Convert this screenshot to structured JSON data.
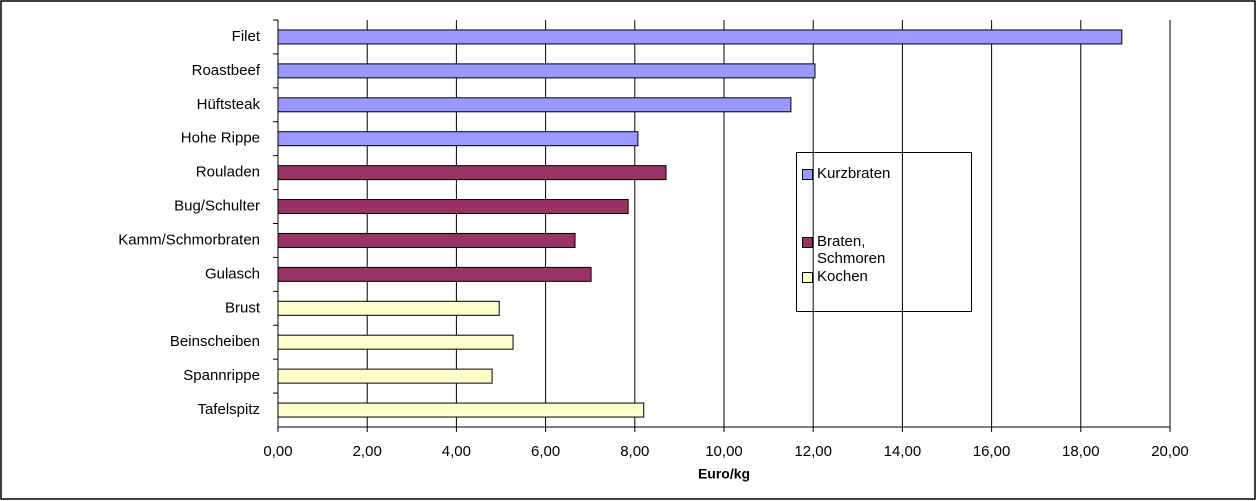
{
  "chart_data": {
    "type": "bar",
    "orientation": "horizontal",
    "x_label": "Euro/kg",
    "categories": [
      "Filet",
      "Roastbeef",
      "Hüftsteak",
      "Hohe Rippe",
      "Rouladen",
      "Bug/Schulter",
      "Kamm/Schmorbraten",
      "Gulasch",
      "Brust",
      "Beinscheiben",
      "Spannrippe",
      "Tafelspitz"
    ],
    "series": [
      {
        "name": "Kurzbraten",
        "color": "#9999ff",
        "values": [
          18.92,
          12.04,
          11.5,
          8.07,
          null,
          null,
          null,
          null,
          null,
          null,
          null,
          null
        ]
      },
      {
        "name": "Braten, Schmoren",
        "color": "#993366",
        "values": [
          null,
          null,
          null,
          null,
          8.7,
          7.85,
          6.66,
          7.02,
          null,
          null,
          null,
          null
        ]
      },
      {
        "name": "Kochen",
        "color": "#ffffcc",
        "values": [
          null,
          null,
          null,
          null,
          null,
          null,
          null,
          null,
          4.96,
          5.27,
          4.8,
          8.2
        ]
      }
    ],
    "xlim": [
      0,
      20
    ],
    "xticks": [
      {
        "value": 0,
        "label": "0,00"
      },
      {
        "value": 2,
        "label": "2,00"
      },
      {
        "value": 4,
        "label": "4,00"
      },
      {
        "value": 6,
        "label": "6,00"
      },
      {
        "value": 8,
        "label": "8,00"
      },
      {
        "value": 10,
        "label": "10,00"
      },
      {
        "value": 12,
        "label": "12,00"
      },
      {
        "value": 14,
        "label": "14,00"
      },
      {
        "value": 16,
        "label": "16,00"
      },
      {
        "value": 18,
        "label": "18,00"
      },
      {
        "value": 20,
        "label": "20,00"
      }
    ],
    "grid": true
  }
}
